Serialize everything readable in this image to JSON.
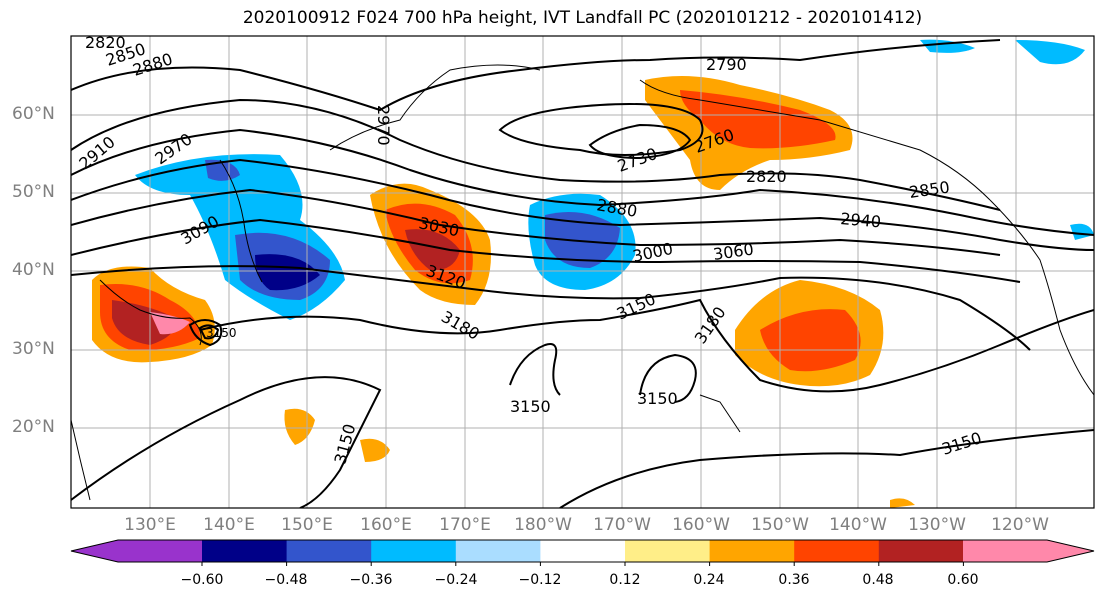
{
  "title": "2020100912 F024 700 hPa height, IVT Landfall PC (2020101212 - 2020101412)",
  "lat_labels": [
    "60°N",
    "50°N",
    "40°N",
    "30°N",
    "20°N"
  ],
  "lon_labels": [
    "130°E",
    "140°E",
    "150°E",
    "160°E",
    "170°E",
    "180°W",
    "170°W",
    "160°W",
    "150°W",
    "140°W",
    "130°W",
    "120°W"
  ],
  "colorbar": {
    "colors": [
      "#9933cc",
      "#000088",
      "#3355cc",
      "#00bbff",
      "#aaddff",
      "#ffffff",
      "#ffee88",
      "#ffa500",
      "#ff4400",
      "#b22222",
      "#ff88aa"
    ],
    "tick_labels": [
      "−0.60",
      "−0.48",
      "−0.36",
      "−0.24",
      "−0.12",
      "0.12",
      "0.24",
      "0.36",
      "0.48",
      "0.60"
    ]
  },
  "contour_labels": [
    "2820",
    "2850",
    "2880",
    "2910",
    "2970",
    "3090",
    "2970",
    "3030",
    "3120",
    "3180",
    "3150",
    "2790",
    "2730",
    "2760",
    "2820",
    "2850",
    "2880",
    "2940",
    "3000",
    "3060",
    "3150",
    "3180",
    "3150",
    "3150",
    "3150",
    "3150"
  ],
  "colors": {
    "grid": "#b0b0b0",
    "frame": "#000000",
    "tick_label": "#7f7f7f"
  }
}
